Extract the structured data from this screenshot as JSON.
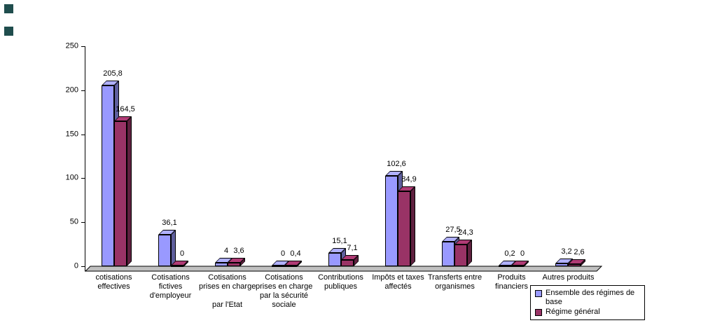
{
  "chart_data": {
    "type": "bar",
    "title": "",
    "categories": [
      "cotisations effectives",
      "Cotisations fictives d'employeur",
      "Cotisations prises en charge par l'Etat",
      "Cotisations prises en charge par la sécurité sociale",
      "Contributions publiques",
      "Impôts et taxes affectés",
      "Transferts entre organismes",
      "Produits financiers",
      "Autres produits"
    ],
    "category_label_lines": [
      [
        "cotisations",
        "effectives"
      ],
      [
        "Cotisations",
        "fictives",
        "d'employeur"
      ],
      [
        "Cotisations",
        "prises en charge",
        "",
        "par l'Etat"
      ],
      [
        "Cotisations",
        "prises en charge",
        "par la sécurité",
        "sociale"
      ],
      [
        "Contributions",
        "publiques"
      ],
      [
        "Impôts et taxes",
        "affectés"
      ],
      [
        "Transferts entre",
        "organismes"
      ],
      [
        "Produits",
        "financiers"
      ],
      [
        "Autres produits"
      ]
    ],
    "series": [
      {
        "name": "Ensemble des régimes de base",
        "color": "#9999FF",
        "values": [
          205.8,
          36.1,
          4,
          0,
          15.1,
          102.6,
          27.5,
          0.2,
          3.2
        ],
        "value_labels": [
          "205,8",
          "36,1",
          "4",
          "0",
          "15,1",
          "102,6",
          "27,5",
          "0,2",
          "3,2"
        ]
      },
      {
        "name": "Régime général",
        "color": "#993366",
        "values": [
          164.5,
          0,
          3.6,
          0.4,
          7.1,
          84.9,
          24.3,
          0,
          2.6
        ],
        "value_labels": [
          "164,5",
          "0",
          "3,6",
          "0,4",
          "7,1",
          "84,9",
          "24,3",
          "0",
          "2,6"
        ]
      }
    ],
    "ylim": [
      0,
      250
    ],
    "yticks": [
      "0",
      "50",
      "100",
      "150",
      "200",
      "250"
    ],
    "grid": false,
    "legend_position": "bottom-right",
    "floor_color": "#C0C0C0",
    "axis_color": "#000000"
  },
  "decorations": {
    "corner_squares_color": "#1F4D4D"
  }
}
